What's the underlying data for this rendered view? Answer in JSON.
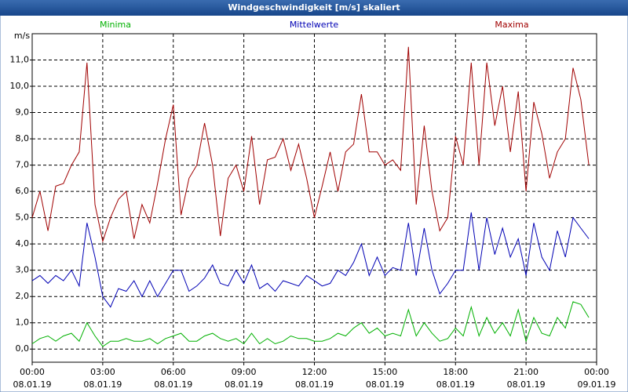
{
  "chart_data": {
    "type": "line",
    "title": "Windgeschwindigkeit [m/s] skaliert",
    "y_label": "m/s",
    "xlim": [
      0,
      24
    ],
    "xticks": [
      {
        "value": 0,
        "label": "00:00",
        "date": "08.01.19"
      },
      {
        "value": 3,
        "label": "03:00",
        "date": "08.01.19"
      },
      {
        "value": 6,
        "label": "06:00",
        "date": "08.01.19"
      },
      {
        "value": 9,
        "label": "09:00",
        "date": "08.01.19"
      },
      {
        "value": 12,
        "label": "12:00",
        "date": "08.01.19"
      },
      {
        "value": 15,
        "label": "15:00",
        "date": "08.01.19"
      },
      {
        "value": 18,
        "label": "18:00",
        "date": "08.01.19"
      },
      {
        "value": 21,
        "label": "21:00",
        "date": "08.01.19"
      },
      {
        "value": 24,
        "label": "00:00",
        "date": "09.01.19"
      }
    ],
    "ylim": [
      -0.5,
      12
    ],
    "yticks": [
      {
        "value": 0,
        "label": "0,0"
      },
      {
        "value": 1,
        "label": "1,0"
      },
      {
        "value": 2,
        "label": "2,0"
      },
      {
        "value": 3,
        "label": "3,0"
      },
      {
        "value": 4,
        "label": "4,0"
      },
      {
        "value": 5,
        "label": "5,0"
      },
      {
        "value": 6,
        "label": "6,0"
      },
      {
        "value": 7,
        "label": "7,0"
      },
      {
        "value": 8,
        "label": "8,0"
      },
      {
        "value": 9,
        "label": "9,0"
      },
      {
        "value": 10,
        "label": "10,0"
      },
      {
        "value": 11,
        "label": "11,0"
      }
    ],
    "grid": true,
    "x": [
      0,
      0.33,
      0.67,
      1,
      1.33,
      1.67,
      2,
      2.33,
      2.67,
      3,
      3.33,
      3.67,
      4,
      4.33,
      4.67,
      5,
      5.33,
      5.67,
      6,
      6.33,
      6.67,
      7,
      7.33,
      7.67,
      8,
      8.33,
      8.67,
      9,
      9.33,
      9.67,
      10,
      10.33,
      10.67,
      11,
      11.33,
      11.67,
      12,
      12.33,
      12.67,
      13,
      13.33,
      13.67,
      14,
      14.33,
      14.67,
      15,
      15.33,
      15.67,
      16,
      16.33,
      16.67,
      17,
      17.33,
      17.67,
      18,
      18.33,
      18.67,
      19,
      19.33,
      19.67,
      20,
      20.33,
      20.67,
      21,
      21.33,
      21.67,
      22,
      22.33,
      22.67,
      23,
      23.33,
      23.67
    ],
    "series": [
      {
        "name": "Minima",
        "color": "#00b000",
        "values": [
          0.2,
          0.4,
          0.5,
          0.3,
          0.5,
          0.6,
          0.3,
          1.0,
          0.5,
          0.1,
          0.3,
          0.3,
          0.4,
          0.3,
          0.3,
          0.4,
          0.2,
          0.4,
          0.5,
          0.6,
          0.3,
          0.3,
          0.5,
          0.6,
          0.4,
          0.3,
          0.4,
          0.2,
          0.6,
          0.2,
          0.4,
          0.2,
          0.3,
          0.5,
          0.4,
          0.4,
          0.3,
          0.3,
          0.4,
          0.6,
          0.5,
          0.8,
          1.0,
          0.6,
          0.8,
          0.5,
          0.6,
          0.5,
          1.5,
          0.5,
          1.0,
          0.6,
          0.3,
          0.4,
          0.8,
          0.5,
          1.6,
          0.5,
          1.2,
          0.6,
          1.0,
          0.5,
          1.5,
          0.3,
          1.2,
          0.6,
          0.5,
          1.2,
          0.8,
          1.8,
          1.7,
          1.2
        ]
      },
      {
        "name": "Mittelwerte",
        "color": "#0000b4",
        "values": [
          2.6,
          2.8,
          2.5,
          2.8,
          2.6,
          3.0,
          2.4,
          4.8,
          3.5,
          2.0,
          1.6,
          2.3,
          2.2,
          2.6,
          2.0,
          2.6,
          2.0,
          2.5,
          3.0,
          3.0,
          2.2,
          2.4,
          2.7,
          3.2,
          2.5,
          2.4,
          3.0,
          2.5,
          3.2,
          2.3,
          2.5,
          2.2,
          2.6,
          2.5,
          2.4,
          2.8,
          2.6,
          2.4,
          2.5,
          3.0,
          2.8,
          3.3,
          4.0,
          2.8,
          3.5,
          2.8,
          3.1,
          3.0,
          4.8,
          2.8,
          4.6,
          3.0,
          2.1,
          2.5,
          3.0,
          3.0,
          5.2,
          3.0,
          5.0,
          3.6,
          4.6,
          3.5,
          4.2,
          2.8,
          4.8,
          3.5,
          3.0,
          4.5,
          3.5,
          5.0,
          4.6,
          4.2
        ]
      },
      {
        "name": "Maxima",
        "color": "#a00000",
        "values": [
          5.0,
          6.0,
          4.5,
          6.2,
          6.3,
          7.0,
          7.5,
          10.9,
          5.5,
          4.1,
          5.0,
          5.7,
          6.0,
          4.2,
          5.5,
          4.8,
          6.3,
          8.0,
          9.3,
          5.1,
          6.5,
          7.0,
          8.6,
          7.0,
          4.3,
          6.5,
          7.0,
          6.0,
          8.1,
          5.5,
          7.2,
          7.3,
          8.0,
          6.8,
          7.8,
          6.5,
          5.0,
          6.2,
          7.5,
          6.0,
          7.5,
          7.8,
          9.7,
          7.5,
          7.5,
          7.0,
          7.2,
          6.8,
          11.5,
          5.5,
          8.5,
          6.0,
          4.5,
          5.0,
          8.1,
          7.0,
          10.9,
          7.0,
          10.9,
          8.5,
          10.0,
          7.5,
          9.8,
          6.0,
          9.4,
          8.2,
          6.5,
          7.5,
          8.0,
          10.7,
          9.5,
          7.0
        ]
      }
    ]
  }
}
